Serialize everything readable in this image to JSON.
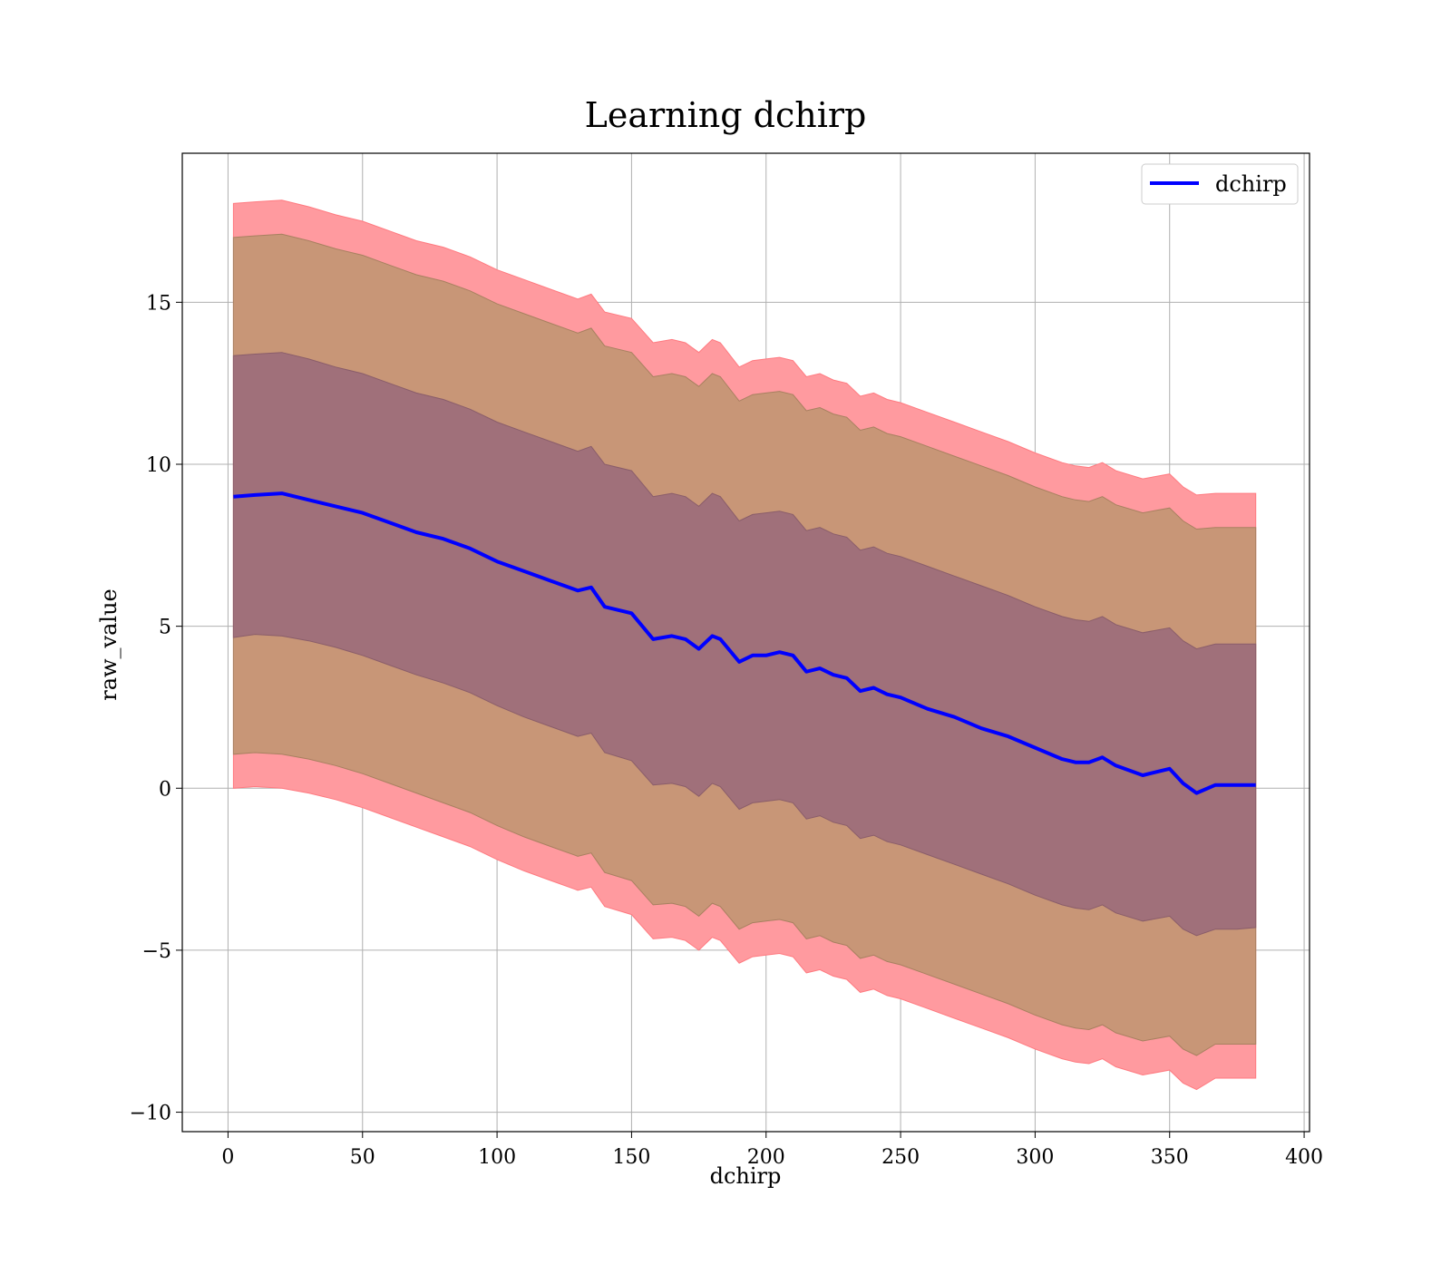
{
  "chart_data": {
    "type": "line",
    "title": "Learning dchirp",
    "xlabel": "dchirp",
    "ylabel": "raw_value",
    "xlim": [
      -17,
      402
    ],
    "ylim": [
      -10.6,
      19.6
    ],
    "xticks": [
      0,
      50,
      100,
      150,
      200,
      250,
      300,
      350,
      400
    ],
    "yticks": [
      -10,
      -5,
      0,
      5,
      10,
      15
    ],
    "grid": true,
    "legend_position": "top-right",
    "colors": {
      "line": "#0000ff",
      "outer_band": "#ff9a9f",
      "middle_band": "#c89677",
      "inner_band": "#a0707a"
    },
    "series": [
      {
        "name": "dchirp",
        "x": [
          2,
          10,
          20,
          30,
          40,
          50,
          60,
          70,
          80,
          90,
          100,
          110,
          120,
          130,
          135,
          140,
          150,
          158,
          165,
          170,
          175,
          180,
          183,
          190,
          195,
          200,
          205,
          210,
          215,
          220,
          225,
          230,
          235,
          240,
          245,
          250,
          260,
          270,
          280,
          290,
          300,
          310,
          315,
          320,
          325,
          330,
          340,
          350,
          355,
          360,
          367,
          375,
          382
        ],
        "mean": [
          9.0,
          9.05,
          9.1,
          8.9,
          8.7,
          8.5,
          8.2,
          7.9,
          7.7,
          7.4,
          7.0,
          6.7,
          6.4,
          6.1,
          6.2,
          5.6,
          5.4,
          4.6,
          4.7,
          4.6,
          4.3,
          4.7,
          4.6,
          3.9,
          4.1,
          4.1,
          4.2,
          4.1,
          3.6,
          3.7,
          3.5,
          3.4,
          3.0,
          3.1,
          2.9,
          2.8,
          2.45,
          2.2,
          1.85,
          1.6,
          1.25,
          0.9,
          0.8,
          0.8,
          0.95,
          0.7,
          0.4,
          0.6,
          0.15,
          -0.15,
          0.1,
          0.1,
          0.1
        ],
        "inner_lower": [
          4.65,
          4.75,
          4.7,
          4.55,
          4.35,
          4.1,
          3.8,
          3.5,
          3.25,
          2.95,
          2.55,
          2.2,
          1.9,
          1.6,
          1.7,
          1.1,
          0.85,
          0.1,
          0.15,
          0.05,
          -0.25,
          0.15,
          0.05,
          -0.65,
          -0.45,
          -0.4,
          -0.35,
          -0.45,
          -0.95,
          -0.85,
          -1.05,
          -1.15,
          -1.55,
          -1.45,
          -1.65,
          -1.75,
          -2.05,
          -2.35,
          -2.65,
          -2.95,
          -3.3,
          -3.6,
          -3.7,
          -3.75,
          -3.6,
          -3.85,
          -4.1,
          -3.95,
          -4.35,
          -4.55,
          -4.35,
          -4.35,
          -4.3
        ],
        "inner_upper": [
          13.35,
          13.4,
          13.45,
          13.25,
          13.0,
          12.8,
          12.5,
          12.2,
          12.0,
          11.7,
          11.3,
          11.0,
          10.7,
          10.4,
          10.55,
          10.0,
          9.8,
          9.0,
          9.1,
          9.0,
          8.7,
          9.1,
          9.0,
          8.25,
          8.45,
          8.5,
          8.55,
          8.45,
          7.95,
          8.05,
          7.85,
          7.75,
          7.35,
          7.45,
          7.25,
          7.15,
          6.85,
          6.55,
          6.25,
          5.95,
          5.6,
          5.3,
          5.2,
          5.15,
          5.3,
          5.05,
          4.8,
          4.95,
          4.55,
          4.3,
          4.45,
          4.45,
          4.45
        ],
        "mid_lower": [
          1.05,
          1.1,
          1.05,
          0.9,
          0.7,
          0.45,
          0.15,
          -0.15,
          -0.45,
          -0.75,
          -1.15,
          -1.5,
          -1.8,
          -2.1,
          -2.0,
          -2.6,
          -2.85,
          -3.6,
          -3.55,
          -3.65,
          -3.95,
          -3.55,
          -3.65,
          -4.35,
          -4.15,
          -4.1,
          -4.05,
          -4.15,
          -4.65,
          -4.55,
          -4.75,
          -4.85,
          -5.25,
          -5.15,
          -5.35,
          -5.45,
          -5.75,
          -6.05,
          -6.35,
          -6.65,
          -7.0,
          -7.3,
          -7.4,
          -7.45,
          -7.3,
          -7.55,
          -7.8,
          -7.65,
          -8.05,
          -8.25,
          -7.9,
          -7.9,
          -7.9
        ],
        "mid_upper": [
          17.0,
          17.05,
          17.1,
          16.9,
          16.65,
          16.45,
          16.15,
          15.85,
          15.65,
          15.35,
          14.95,
          14.65,
          14.35,
          14.05,
          14.2,
          13.65,
          13.45,
          12.7,
          12.8,
          12.7,
          12.4,
          12.8,
          12.7,
          11.95,
          12.15,
          12.2,
          12.25,
          12.15,
          11.65,
          11.75,
          11.55,
          11.45,
          11.05,
          11.15,
          10.95,
          10.85,
          10.55,
          10.25,
          9.95,
          9.65,
          9.3,
          9.0,
          8.9,
          8.85,
          9.0,
          8.75,
          8.5,
          8.65,
          8.25,
          8.0,
          8.05,
          8.05,
          8.05
        ],
        "outer_lower": [
          0.0,
          0.05,
          0.0,
          -0.15,
          -0.35,
          -0.6,
          -0.9,
          -1.2,
          -1.5,
          -1.8,
          -2.2,
          -2.55,
          -2.85,
          -3.15,
          -3.05,
          -3.65,
          -3.9,
          -4.65,
          -4.6,
          -4.7,
          -5.0,
          -4.6,
          -4.7,
          -5.4,
          -5.2,
          -5.15,
          -5.1,
          -5.2,
          -5.7,
          -5.6,
          -5.8,
          -5.9,
          -6.3,
          -6.2,
          -6.4,
          -6.5,
          -6.8,
          -7.1,
          -7.4,
          -7.7,
          -8.05,
          -8.35,
          -8.45,
          -8.5,
          -8.35,
          -8.6,
          -8.85,
          -8.7,
          -9.1,
          -9.3,
          -8.95,
          -8.95,
          -8.95
        ],
        "outer_upper": [
          18.05,
          18.1,
          18.15,
          17.95,
          17.7,
          17.5,
          17.2,
          16.9,
          16.7,
          16.4,
          16.0,
          15.7,
          15.4,
          15.1,
          15.25,
          14.7,
          14.5,
          13.75,
          13.85,
          13.75,
          13.45,
          13.85,
          13.75,
          13.0,
          13.2,
          13.25,
          13.3,
          13.2,
          12.7,
          12.8,
          12.6,
          12.5,
          12.1,
          12.2,
          12.0,
          11.9,
          11.6,
          11.3,
          11.0,
          10.7,
          10.35,
          10.05,
          9.95,
          9.9,
          10.05,
          9.8,
          9.55,
          9.7,
          9.3,
          9.05,
          9.1,
          9.1,
          9.1
        ]
      }
    ]
  }
}
